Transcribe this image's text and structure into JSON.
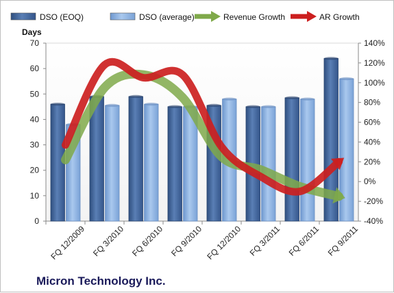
{
  "chart_data": {
    "type": "bar",
    "title": "Micron Technology Inc.",
    "ylabel_left": "Days",
    "categories": [
      "FQ 12/2009",
      "FQ 3/2010",
      "FQ 6/2010",
      "FQ 9/2010",
      "FQ 12/2010",
      "FQ 3/2011",
      "FQ 6/2011",
      "FQ 9/2011"
    ],
    "y_left": {
      "min": 0,
      "max": 70,
      "step": 10,
      "ticks": [
        "0",
        "10",
        "20",
        "30",
        "40",
        "50",
        "60",
        "70"
      ]
    },
    "y_right": {
      "min": -40,
      "max": 140,
      "step": 20,
      "ticks": [
        "-40%",
        "-20%",
        "0%",
        "20%",
        "40%",
        "60%",
        "80%",
        "100%",
        "120%",
        "140%"
      ]
    },
    "series": [
      {
        "name": "DSO (EOQ)",
        "kind": "bar",
        "axis": "left",
        "color": "#4a6a9c",
        "values": [
          46,
          49,
          49,
          45,
          45.5,
          45,
          48.5,
          64
        ]
      },
      {
        "name": "DSO (average)",
        "kind": "bar",
        "axis": "left",
        "color": "#8fb4e3",
        "values": [
          38,
          45.5,
          46,
          45,
          48,
          45,
          48,
          56
        ]
      },
      {
        "name": "Revenue Growth",
        "kind": "line",
        "axis": "right",
        "color": "#7fa94a",
        "values": [
          22,
          95,
          108,
          85,
          25,
          12,
          -5,
          -15
        ]
      },
      {
        "name": "AR Growth",
        "kind": "line",
        "axis": "right",
        "color": "#cc1f1f",
        "values": [
          37,
          118,
          105,
          108,
          35,
          5,
          -10,
          20
        ]
      }
    ],
    "grid": false,
    "legend_position": "top"
  },
  "legend": [
    {
      "label": "DSO (EOQ)",
      "kind": "bar",
      "color": "#4a6a9c"
    },
    {
      "label": "DSO (average)",
      "kind": "bar",
      "color": "#8fb4e3"
    },
    {
      "label": "Revenue Growth",
      "kind": "arrow",
      "color": "#7fa94a"
    },
    {
      "label": "AR Growth",
      "kind": "arrow",
      "color": "#cc1f1f"
    }
  ],
  "company": "Micron Technology Inc."
}
